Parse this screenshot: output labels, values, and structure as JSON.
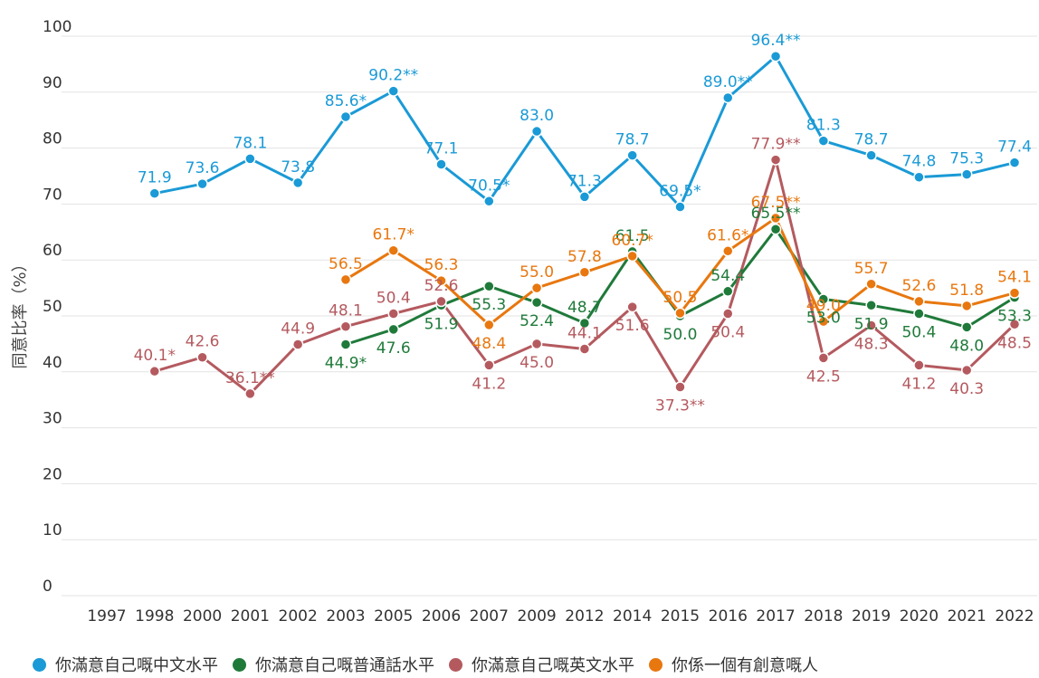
{
  "chart_data": {
    "type": "line",
    "ylabel": "同意比率（%）",
    "ylim": [
      0,
      100
    ],
    "yticks": [
      "0",
      "10",
      "20",
      "30",
      "40",
      "50",
      "60",
      "70",
      "80",
      "90",
      "100"
    ],
    "grid": true,
    "legend_position": "bottom",
    "categories": [
      "1997",
      "1998",
      "2000",
      "2001",
      "2002",
      "2003",
      "2005",
      "2006",
      "2007",
      "2009",
      "2012",
      "2014",
      "2015",
      "2016",
      "2017",
      "2018",
      "2019",
      "2020",
      "2021",
      "2022"
    ],
    "series": [
      {
        "name": "你滿意自己嘅中文水平",
        "color": "#1a9ad6",
        "values": [
          null,
          71.9,
          73.6,
          78.1,
          73.8,
          85.6,
          90.2,
          77.1,
          70.5,
          83.0,
          71.3,
          78.7,
          69.5,
          89.0,
          96.4,
          81.3,
          78.7,
          74.8,
          75.3,
          77.4
        ],
        "labels": [
          null,
          "71.9",
          "73.6",
          "78.1",
          "73.8",
          "85.6*",
          "90.2**",
          "77.1",
          "70.5*",
          "83.0",
          "71.3",
          "78.7",
          "69.5*",
          "89.0**",
          "96.4**",
          "81.3",
          "78.7",
          "74.8",
          "75.3",
          "77.4"
        ]
      },
      {
        "name": "你滿意自己嘅普通話水平",
        "color": "#1f7a3a",
        "values": [
          null,
          null,
          null,
          null,
          null,
          44.9,
          47.6,
          51.9,
          55.3,
          52.4,
          48.7,
          61.5,
          50.0,
          54.4,
          65.5,
          53.0,
          51.9,
          50.4,
          48.0,
          53.3
        ],
        "labels": [
          null,
          null,
          null,
          null,
          null,
          "44.9*",
          "47.6",
          "51.9",
          "55.3",
          "52.4",
          "48.7",
          "61.5",
          "50.0",
          "54.4",
          "65.5**",
          "53.0",
          "51.9",
          "50.4",
          "48.0",
          "53.3"
        ]
      },
      {
        "name": "你滿意自己嘅英文水平",
        "color": "#b45a5f",
        "values": [
          null,
          40.1,
          42.6,
          36.1,
          44.9,
          48.1,
          50.4,
          52.6,
          41.2,
          45.0,
          44.1,
          51.6,
          37.3,
          50.4,
          77.9,
          42.5,
          48.3,
          41.2,
          40.3,
          48.5
        ],
        "labels": [
          null,
          "40.1*",
          "42.6",
          "36.1**",
          "44.9",
          "48.1",
          "50.4",
          "52.6",
          "41.2",
          "45.0",
          "44.1",
          "51.6",
          "37.3**",
          "50.4",
          "77.9**",
          "42.5",
          "48.3",
          "41.2",
          "40.3",
          "48.5"
        ]
      },
      {
        "name": "你係一個有創意嘅人",
        "color": "#e8770f",
        "values": [
          null,
          null,
          null,
          null,
          null,
          56.5,
          61.7,
          56.3,
          48.4,
          55.0,
          57.8,
          60.7,
          50.5,
          61.6,
          67.5,
          49.0,
          55.7,
          52.6,
          51.8,
          54.1
        ],
        "labels": [
          null,
          null,
          null,
          null,
          null,
          "56.5",
          "61.7*",
          "56.3",
          "48.4",
          "55.0",
          "57.8",
          "60.7*",
          "50.5",
          "61.6*",
          "67.5**",
          "49.0",
          "55.7",
          "52.6",
          "51.8",
          "54.1"
        ]
      }
    ]
  }
}
